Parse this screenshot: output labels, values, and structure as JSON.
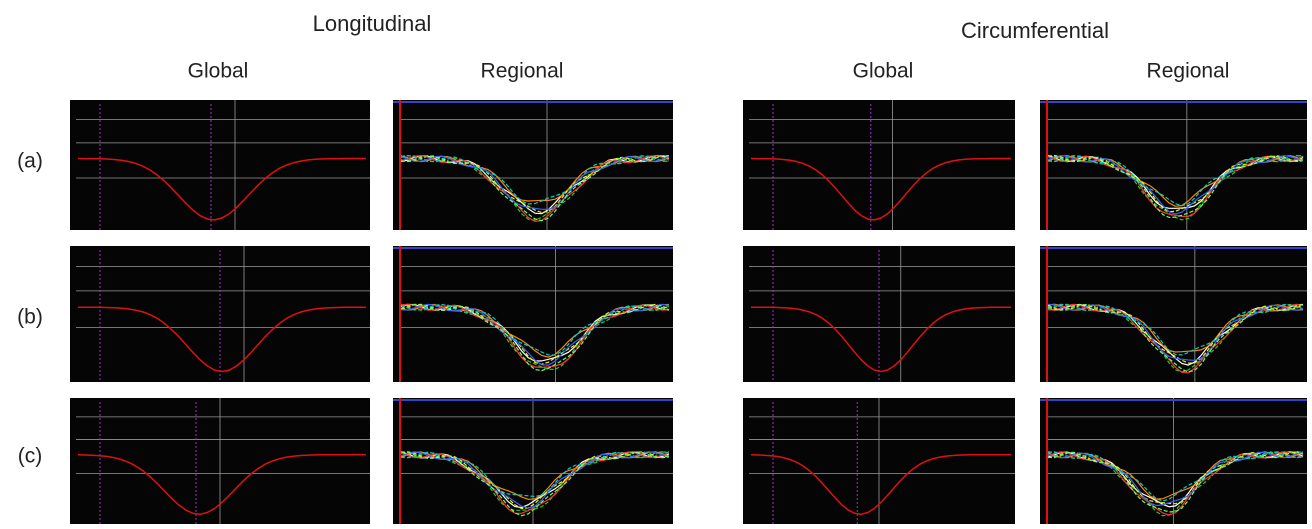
{
  "headers": {
    "longitudinal": "Longitudinal",
    "circumferential": "Circumferential"
  },
  "columns": [
    "Global",
    "Regional",
    "Global",
    "Regional"
  ],
  "rows": [
    "(a)",
    "(b)",
    "(c)"
  ]
}
